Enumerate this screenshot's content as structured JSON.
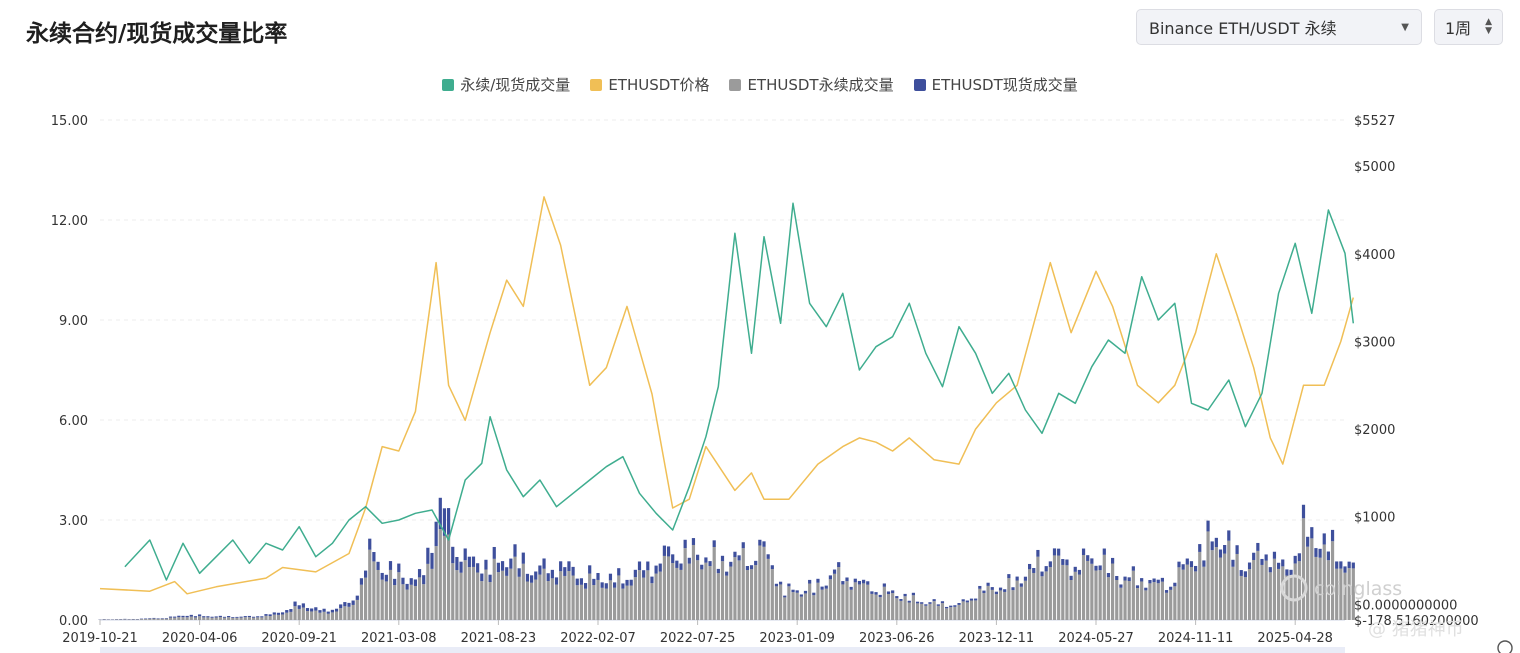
{
  "header": {
    "title": "永续合约/现货成交量比率",
    "pair_select": "Binance ETH/USDT 永续",
    "period_select": "1周"
  },
  "legend": [
    {
      "label": "永续/现货成交量",
      "color": "#3fad8f"
    },
    {
      "label": "ETHUSDT价格",
      "color": "#f0bf56"
    },
    {
      "label": "ETHUSDT永续成交量",
      "color": "#9b9b9b"
    },
    {
      "label": "ETHUSDT现货成交量",
      "color": "#3e4f9c"
    }
  ],
  "watermark": "coinglass",
  "footer_tag": "@ 猪猪神币",
  "chart_data": {
    "type": "line",
    "left_axis": {
      "ticks": [
        "0.00",
        "3.00",
        "6.00",
        "9.00",
        "12.00",
        "15.00"
      ],
      "tick_values": [
        0,
        3,
        6,
        9,
        12,
        15
      ],
      "ylim": [
        0,
        15
      ]
    },
    "right_axis": {
      "ticks": [
        "$-178.5160200000",
        "$0.0000000000",
        "$1000",
        "$2000",
        "$3000",
        "$4000",
        "$5000",
        "$5527"
      ],
      "tick_values": [
        -178.516,
        0,
        1000,
        2000,
        3000,
        4000,
        5000,
        5527
      ],
      "ylim": [
        -178.516,
        5527
      ]
    },
    "x_ticks": [
      "2019-10-21",
      "2020-04-06",
      "2020-09-21",
      "2021-03-08",
      "2021-08-23",
      "2022-02-07",
      "2022-07-25",
      "2023-01-09",
      "2023-06-26",
      "2023-12-11",
      "2024-05-27",
      "2024-11-11",
      "2025-04-28"
    ],
    "ratio_series": {
      "name": "永续/现货成交量",
      "color": "#3fad8f",
      "axis": "left",
      "points": [
        {
          "x": "2019-12-02",
          "y": 1.6
        },
        {
          "x": "2020-01-13",
          "y": 2.4
        },
        {
          "x": "2020-02-10",
          "y": 1.2
        },
        {
          "x": "2020-03-09",
          "y": 2.3
        },
        {
          "x": "2020-04-06",
          "y": 1.4
        },
        {
          "x": "2020-05-04",
          "y": 1.9
        },
        {
          "x": "2020-06-01",
          "y": 2.4
        },
        {
          "x": "2020-06-29",
          "y": 1.7
        },
        {
          "x": "2020-07-27",
          "y": 2.3
        },
        {
          "x": "2020-08-24",
          "y": 2.1
        },
        {
          "x": "2020-09-21",
          "y": 2.8
        },
        {
          "x": "2020-10-19",
          "y": 1.9
        },
        {
          "x": "2020-11-16",
          "y": 2.3
        },
        {
          "x": "2020-12-14",
          "y": 3.0
        },
        {
          "x": "2021-01-11",
          "y": 3.4
        },
        {
          "x": "2021-02-08",
          "y": 2.9
        },
        {
          "x": "2021-03-08",
          "y": 3.0
        },
        {
          "x": "2021-04-05",
          "y": 3.2
        },
        {
          "x": "2021-05-03",
          "y": 3.3
        },
        {
          "x": "2021-05-31",
          "y": 2.4
        },
        {
          "x": "2021-06-28",
          "y": 4.2
        },
        {
          "x": "2021-07-26",
          "y": 4.7
        },
        {
          "x": "2021-08-09",
          "y": 6.1
        },
        {
          "x": "2021-09-06",
          "y": 4.5
        },
        {
          "x": "2021-10-04",
          "y": 3.7
        },
        {
          "x": "2021-11-01",
          "y": 4.2
        },
        {
          "x": "2021-11-29",
          "y": 3.4
        },
        {
          "x": "2021-12-27",
          "y": 3.8
        },
        {
          "x": "2022-01-24",
          "y": 4.2
        },
        {
          "x": "2022-02-21",
          "y": 4.6
        },
        {
          "x": "2022-03-21",
          "y": 4.9
        },
        {
          "x": "2022-04-18",
          "y": 3.8
        },
        {
          "x": "2022-05-16",
          "y": 3.2
        },
        {
          "x": "2022-06-13",
          "y": 2.7
        },
        {
          "x": "2022-07-11",
          "y": 4.0
        },
        {
          "x": "2022-08-08",
          "y": 5.5
        },
        {
          "x": "2022-08-29",
          "y": 7.0
        },
        {
          "x": "2022-09-26",
          "y": 11.6
        },
        {
          "x": "2022-10-24",
          "y": 8.0
        },
        {
          "x": "2022-11-14",
          "y": 11.5
        },
        {
          "x": "2022-12-12",
          "y": 8.9
        },
        {
          "x": "2023-01-02",
          "y": 12.5
        },
        {
          "x": "2023-01-30",
          "y": 9.5
        },
        {
          "x": "2023-02-27",
          "y": 8.8
        },
        {
          "x": "2023-03-27",
          "y": 9.8
        },
        {
          "x": "2023-04-24",
          "y": 7.5
        },
        {
          "x": "2023-05-22",
          "y": 8.2
        },
        {
          "x": "2023-06-19",
          "y": 8.5
        },
        {
          "x": "2023-07-17",
          "y": 9.5
        },
        {
          "x": "2023-08-14",
          "y": 8.0
        },
        {
          "x": "2023-09-11",
          "y": 7.0
        },
        {
          "x": "2023-10-09",
          "y": 8.8
        },
        {
          "x": "2023-11-06",
          "y": 8.0
        },
        {
          "x": "2023-12-04",
          "y": 6.8
        },
        {
          "x": "2024-01-01",
          "y": 7.4
        },
        {
          "x": "2024-01-29",
          "y": 6.3
        },
        {
          "x": "2024-02-26",
          "y": 5.6
        },
        {
          "x": "2024-03-25",
          "y": 6.8
        },
        {
          "x": "2024-04-22",
          "y": 6.5
        },
        {
          "x": "2024-05-20",
          "y": 7.6
        },
        {
          "x": "2024-06-17",
          "y": 8.4
        },
        {
          "x": "2024-07-15",
          "y": 8.0
        },
        {
          "x": "2024-08-12",
          "y": 10.3
        },
        {
          "x": "2024-09-09",
          "y": 9.0
        },
        {
          "x": "2024-10-07",
          "y": 9.5
        },
        {
          "x": "2024-11-04",
          "y": 6.5
        },
        {
          "x": "2024-12-02",
          "y": 6.3
        },
        {
          "x": "2025-01-06",
          "y": 7.2
        },
        {
          "x": "2025-02-03",
          "y": 5.8
        },
        {
          "x": "2025-03-03",
          "y": 6.8
        },
        {
          "x": "2025-03-31",
          "y": 9.8
        },
        {
          "x": "2025-04-28",
          "y": 11.3
        },
        {
          "x": "2025-05-26",
          "y": 9.2
        },
        {
          "x": "2025-06-23",
          "y": 12.3
        },
        {
          "x": "2025-07-21",
          "y": 11.0
        },
        {
          "x": "2025-08-04",
          "y": 8.9
        }
      ]
    },
    "price_series": {
      "name": "ETHUSDT价格",
      "color": "#f0bf56",
      "axis": "right",
      "points": [
        {
          "x": "2019-10-21",
          "y": 180
        },
        {
          "x": "2020-01-13",
          "y": 150
        },
        {
          "x": "2020-02-24",
          "y": 260
        },
        {
          "x": "2020-03-16",
          "y": 120
        },
        {
          "x": "2020-05-04",
          "y": 200
        },
        {
          "x": "2020-07-27",
          "y": 300
        },
        {
          "x": "2020-08-24",
          "y": 420
        },
        {
          "x": "2020-10-19",
          "y": 370
        },
        {
          "x": "2020-12-14",
          "y": 580
        },
        {
          "x": "2021-01-11",
          "y": 1100
        },
        {
          "x": "2021-02-08",
          "y": 1800
        },
        {
          "x": "2021-03-08",
          "y": 1750
        },
        {
          "x": "2021-04-05",
          "y": 2200
        },
        {
          "x": "2021-05-10",
          "y": 3900
        },
        {
          "x": "2021-05-31",
          "y": 2500
        },
        {
          "x": "2021-06-28",
          "y": 2100
        },
        {
          "x": "2021-08-09",
          "y": 3100
        },
        {
          "x": "2021-09-06",
          "y": 3700
        },
        {
          "x": "2021-10-04",
          "y": 3400
        },
        {
          "x": "2021-11-08",
          "y": 4650
        },
        {
          "x": "2021-12-06",
          "y": 4100
        },
        {
          "x": "2022-01-24",
          "y": 2500
        },
        {
          "x": "2022-02-21",
          "y": 2700
        },
        {
          "x": "2022-03-28",
          "y": 3400
        },
        {
          "x": "2022-05-09",
          "y": 2400
        },
        {
          "x": "2022-06-13",
          "y": 1100
        },
        {
          "x": "2022-07-11",
          "y": 1200
        },
        {
          "x": "2022-08-08",
          "y": 1800
        },
        {
          "x": "2022-09-26",
          "y": 1300
        },
        {
          "x": "2022-10-24",
          "y": 1500
        },
        {
          "x": "2022-11-14",
          "y": 1200
        },
        {
          "x": "2022-12-26",
          "y": 1200
        },
        {
          "x": "2023-02-13",
          "y": 1600
        },
        {
          "x": "2023-03-27",
          "y": 1800
        },
        {
          "x": "2023-04-24",
          "y": 1900
        },
        {
          "x": "2023-05-22",
          "y": 1850
        },
        {
          "x": "2023-06-19",
          "y": 1750
        },
        {
          "x": "2023-07-17",
          "y": 1900
        },
        {
          "x": "2023-08-28",
          "y": 1650
        },
        {
          "x": "2023-10-09",
          "y": 1600
        },
        {
          "x": "2023-11-06",
          "y": 2000
        },
        {
          "x": "2023-12-11",
          "y": 2300
        },
        {
          "x": "2024-01-15",
          "y": 2500
        },
        {
          "x": "2024-03-11",
          "y": 3900
        },
        {
          "x": "2024-04-15",
          "y": 3100
        },
        {
          "x": "2024-05-27",
          "y": 3800
        },
        {
          "x": "2024-06-24",
          "y": 3400
        },
        {
          "x": "2024-08-05",
          "y": 2500
        },
        {
          "x": "2024-09-09",
          "y": 2300
        },
        {
          "x": "2024-10-07",
          "y": 2500
        },
        {
          "x": "2024-11-11",
          "y": 3100
        },
        {
          "x": "2024-12-16",
          "y": 4000
        },
        {
          "x": "2025-01-20",
          "y": 3300
        },
        {
          "x": "2025-02-17",
          "y": 2700
        },
        {
          "x": "2025-03-17",
          "y": 1900
        },
        {
          "x": "2025-04-07",
          "y": 1600
        },
        {
          "x": "2025-05-12",
          "y": 2500
        },
        {
          "x": "2025-06-16",
          "y": 2500
        },
        {
          "x": "2025-07-14",
          "y": 3000
        },
        {
          "x": "2025-08-04",
          "y": 3500
        }
      ]
    },
    "volume_bars": {
      "axis": "right",
      "perp_name": "ETHUSDT永续成交量",
      "perp_color": "#9b9b9b",
      "spot_name": "ETHUSDT现货成交量",
      "spot_color": "#3e4f9c",
      "points": [
        {
          "x": "2019-10-21",
          "perp": 5,
          "spot": 3
        },
        {
          "x": "2019-12-16",
          "perp": 8,
          "spot": 4
        },
        {
          "x": "2020-02-10",
          "perp": 20,
          "spot": 8
        },
        {
          "x": "2020-03-16",
          "perp": 40,
          "spot": 20
        },
        {
          "x": "2020-05-11",
          "perp": 30,
          "spot": 12
        },
        {
          "x": "2020-07-06",
          "perp": 30,
          "spot": 12
        },
        {
          "x": "2020-08-17",
          "perp": 60,
          "spot": 25
        },
        {
          "x": "2020-09-21",
          "perp": 150,
          "spot": 50
        },
        {
          "x": "2020-11-02",
          "perp": 80,
          "spot": 30
        },
        {
          "x": "2020-12-21",
          "perp": 170,
          "spot": 50
        },
        {
          "x": "2021-01-18",
          "perp": 700,
          "spot": 110
        },
        {
          "x": "2021-02-22",
          "perp": 510,
          "spot": 90
        },
        {
          "x": "2021-04-12",
          "perp": 410,
          "spot": 80
        },
        {
          "x": "2021-05-17",
          "perp": 1020,
          "spot": 350
        },
        {
          "x": "2021-06-28",
          "perp": 610,
          "spot": 120
        },
        {
          "x": "2021-08-09",
          "perp": 570,
          "spot": 110
        },
        {
          "x": "2021-09-13",
          "perp": 660,
          "spot": 130
        },
        {
          "x": "2021-10-25",
          "perp": 500,
          "spot": 100
        },
        {
          "x": "2021-12-06",
          "perp": 540,
          "spot": 110
        },
        {
          "x": "2022-01-24",
          "perp": 450,
          "spot": 80
        },
        {
          "x": "2022-03-14",
          "perp": 430,
          "spot": 70
        },
        {
          "x": "2022-05-09",
          "perp": 560,
          "spot": 100
        },
        {
          "x": "2022-06-13",
          "perp": 720,
          "spot": 110
        },
        {
          "x": "2022-07-18",
          "perp": 760,
          "spot": 70
        },
        {
          "x": "2022-09-12",
          "perp": 660,
          "spot": 60
        },
        {
          "x": "2022-11-14",
          "perp": 800,
          "spot": 60
        },
        {
          "x": "2022-12-19",
          "perp": 320,
          "spot": 25
        },
        {
          "x": "2023-02-13",
          "perp": 380,
          "spot": 40
        },
        {
          "x": "2023-03-13",
          "perp": 540,
          "spot": 50
        },
        {
          "x": "2023-04-24",
          "perp": 410,
          "spot": 40
        },
        {
          "x": "2023-06-19",
          "perp": 300,
          "spot": 30
        },
        {
          "x": "2023-08-14",
          "perp": 200,
          "spot": 20
        },
        {
          "x": "2023-10-09",
          "perp": 160,
          "spot": 20
        },
        {
          "x": "2023-11-13",
          "perp": 330,
          "spot": 30
        },
        {
          "x": "2024-01-08",
          "perp": 410,
          "spot": 40
        },
        {
          "x": "2024-03-11",
          "perp": 730,
          "spot": 80
        },
        {
          "x": "2024-04-22",
          "perp": 580,
          "spot": 60
        },
        {
          "x": "2024-05-27",
          "perp": 740,
          "spot": 70
        },
        {
          "x": "2024-07-08",
          "perp": 490,
          "spot": 50
        },
        {
          "x": "2024-08-05",
          "perp": 470,
          "spot": 40
        },
        {
          "x": "2024-09-23",
          "perp": 390,
          "spot": 40
        },
        {
          "x": "2024-11-11",
          "perp": 720,
          "spot": 80
        },
        {
          "x": "2024-12-16",
          "perp": 940,
          "spot": 120
        },
        {
          "x": "2025-02-03",
          "perp": 590,
          "spot": 80
        },
        {
          "x": "2025-03-10",
          "perp": 770,
          "spot": 80
        },
        {
          "x": "2025-04-14",
          "perp": 510,
          "spot": 70
        },
        {
          "x": "2025-05-12",
          "perp": 980,
          "spot": 130
        },
        {
          "x": "2025-06-16",
          "perp": 820,
          "spot": 120
        },
        {
          "x": "2025-07-14",
          "perp": 710,
          "spot": 100
        },
        {
          "x": "2025-08-04",
          "perp": 530,
          "spot": 60
        }
      ]
    },
    "grid": true,
    "legend_position": "top-center"
  }
}
